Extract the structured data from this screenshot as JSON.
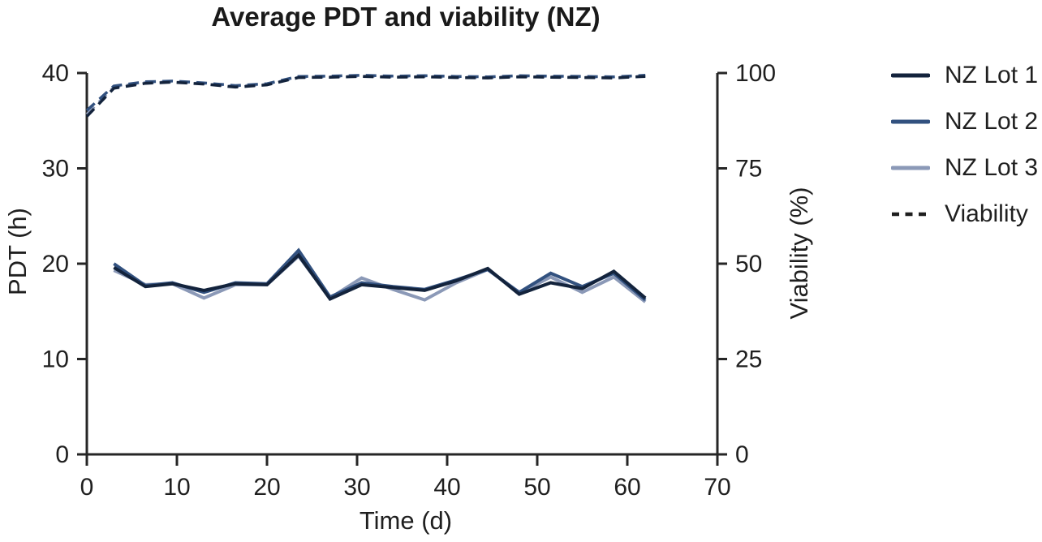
{
  "chart_data": {
    "type": "line",
    "title": "Average PDT and viability (NZ)",
    "xlabel": "Time (d)",
    "ylabel_left": "PDT (h)",
    "ylabel_right": "Viability (%)",
    "xlim": [
      0,
      70
    ],
    "ylim_left": [
      0,
      40
    ],
    "ylim_right": [
      0,
      100
    ],
    "x_ticks": [
      0,
      10,
      20,
      30,
      40,
      50,
      60,
      70
    ],
    "y_ticks_left": [
      0,
      10,
      20,
      30,
      40
    ],
    "y_ticks_right": [
      0,
      25,
      50,
      75,
      100
    ],
    "grid": false,
    "legend_position": "right-outside",
    "axis_color": "#262626",
    "background_color": "#ffffff",
    "pdt_x": [
      3,
      6.5,
      9.5,
      13,
      16.5,
      20,
      23.5,
      27,
      30.5,
      34,
      37.5,
      41,
      44.5,
      48,
      51.5,
      55,
      58.5,
      62
    ],
    "pdt_series": [
      {
        "name": "NZ Lot 1",
        "color": "#13233c",
        "style": "solid",
        "values": [
          19.6,
          17.6,
          17.9,
          17.2,
          17.9,
          17.8,
          20.9,
          16.3,
          17.8,
          17.5,
          17.2,
          18.2,
          19.5,
          16.8,
          18.0,
          17.4,
          19.2,
          16.4
        ]
      },
      {
        "name": "NZ Lot 2",
        "color": "#32517f",
        "style": "solid",
        "values": [
          20.0,
          17.7,
          18.0,
          17.0,
          18.0,
          17.9,
          21.4,
          16.5,
          18.0,
          17.6,
          17.3,
          18.3,
          19.4,
          17.0,
          19.0,
          17.6,
          19.0,
          16.2
        ]
      },
      {
        "name": "NZ Lot 3",
        "color": "#8b99b7",
        "style": "solid",
        "values": [
          19.3,
          17.8,
          17.9,
          16.4,
          17.8,
          17.8,
          20.8,
          16.4,
          18.5,
          17.3,
          16.2,
          18.0,
          19.4,
          16.9,
          18.6,
          17.0,
          18.6,
          16.0
        ]
      }
    ],
    "viability_x": [
      0,
      3,
      6.5,
      9.5,
      13,
      16.5,
      20,
      23.5,
      27,
      30.5,
      34,
      37.5,
      41,
      44.5,
      48,
      51.5,
      55,
      58.5,
      62
    ],
    "viability_series": [
      {
        "name": "NZ Lot 1 viability",
        "color": "#13233c",
        "style": "dashed",
        "values": [
          88.6,
          96.0,
          97.3,
          97.6,
          97.1,
          96.3,
          96.9,
          98.8,
          98.9,
          99.1,
          98.9,
          99.0,
          98.8,
          98.7,
          99.0,
          98.9,
          98.8,
          98.7,
          99.1
        ]
      },
      {
        "name": "NZ Lot 2 viability",
        "color": "#32517f",
        "style": "dashed",
        "values": [
          90.2,
          96.6,
          97.7,
          97.9,
          97.4,
          96.7,
          97.2,
          99.1,
          99.2,
          99.4,
          99.2,
          99.3,
          99.1,
          99.0,
          99.3,
          99.2,
          99.1,
          99.0,
          99.4
        ]
      },
      {
        "name": "NZ Lot 3 viability",
        "color": "#8b99b7",
        "style": "dashed",
        "values": [
          89.2,
          96.3,
          97.5,
          97.7,
          97.2,
          96.5,
          97.0,
          98.9,
          99.0,
          99.2,
          99.0,
          99.1,
          98.9,
          98.8,
          99.1,
          99.0,
          98.9,
          98.8,
          99.2
        ]
      }
    ],
    "legend": [
      {
        "label": "NZ Lot 1",
        "color": "#13233c",
        "dash": false
      },
      {
        "label": "NZ Lot 2",
        "color": "#32517f",
        "dash": false
      },
      {
        "label": "NZ Lot 3",
        "color": "#8b99b7",
        "dash": false
      },
      {
        "label": "Viability",
        "color": "#1f1f1f",
        "dash": true
      }
    ]
  }
}
